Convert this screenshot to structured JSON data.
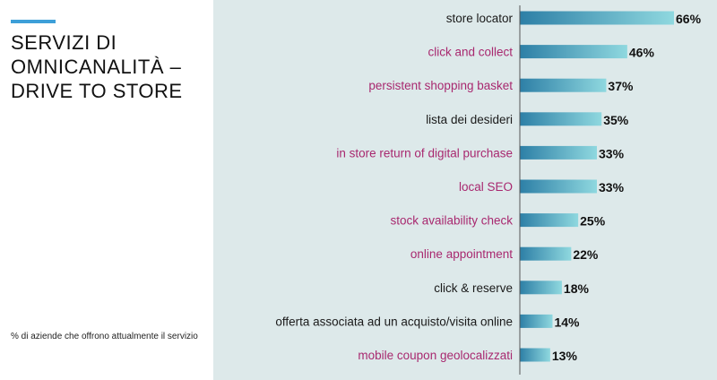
{
  "slide": {
    "title": "SERVIZI DI\nOMNICANALITÀ –\nDRIVE TO STORE",
    "footnote": "% di aziende che offrono attualmente il servizio"
  },
  "colors": {
    "accent": "#3d9fd8",
    "label_black": "#1a1a1a",
    "label_magenta": "#a8286f",
    "bar_start": "#2d7fa6",
    "bar_end": "#8fd8df",
    "panel_bg": "#dde9ea"
  },
  "chart_data": {
    "type": "bar",
    "orientation": "horizontal",
    "categories": [
      "store locator",
      "click and collect",
      "persistent shopping basket",
      "lista dei desideri",
      "in store return of digital purchase",
      "local SEO",
      "stock availability check",
      "online appointment",
      "click & reserve",
      "offerta associata ad un acquisto/visita online",
      "mobile coupon geolocalizzati"
    ],
    "category_colors": [
      "black",
      "magenta",
      "magenta",
      "black",
      "magenta",
      "magenta",
      "magenta",
      "magenta",
      "black",
      "black",
      "magenta"
    ],
    "values": [
      66,
      46,
      37,
      35,
      33,
      33,
      25,
      22,
      18,
      14,
      13
    ],
    "value_labels": [
      "66%",
      "46%",
      "37%",
      "35%",
      "33%",
      "33%",
      "25%",
      "22%",
      "18%",
      "14%",
      "13%"
    ],
    "xlim": [
      0,
      66
    ],
    "legend": "none",
    "grid": false
  }
}
